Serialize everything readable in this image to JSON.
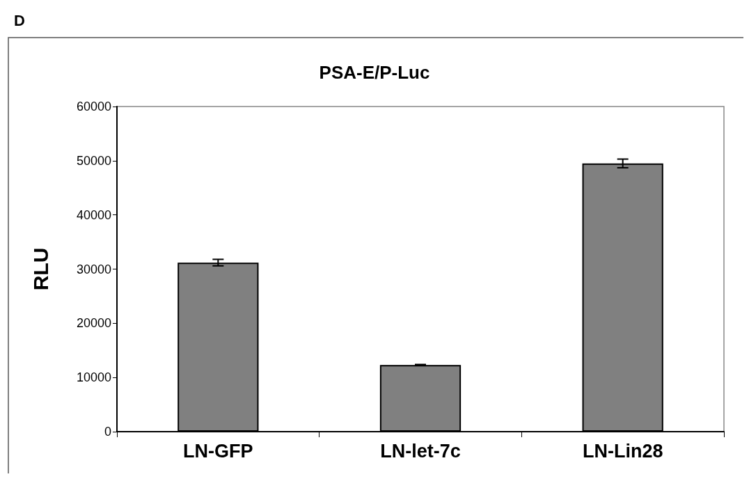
{
  "chart_data": {
    "type": "bar",
    "title": "PSA-E/P-Luc",
    "ylabel": "RLU",
    "annotations": [
      "D"
    ],
    "categories": [
      "LN-GFP",
      "LN-let-7c",
      "LN-Lin28"
    ],
    "values": [
      31200,
      12300,
      49500
    ],
    "errors": [
      600,
      100,
      800
    ],
    "color": "#808080",
    "ylim": [
      0,
      60000
    ],
    "yticks": [
      0,
      10000,
      20000,
      30000,
      40000,
      50000,
      60000
    ],
    "grid": false
  }
}
